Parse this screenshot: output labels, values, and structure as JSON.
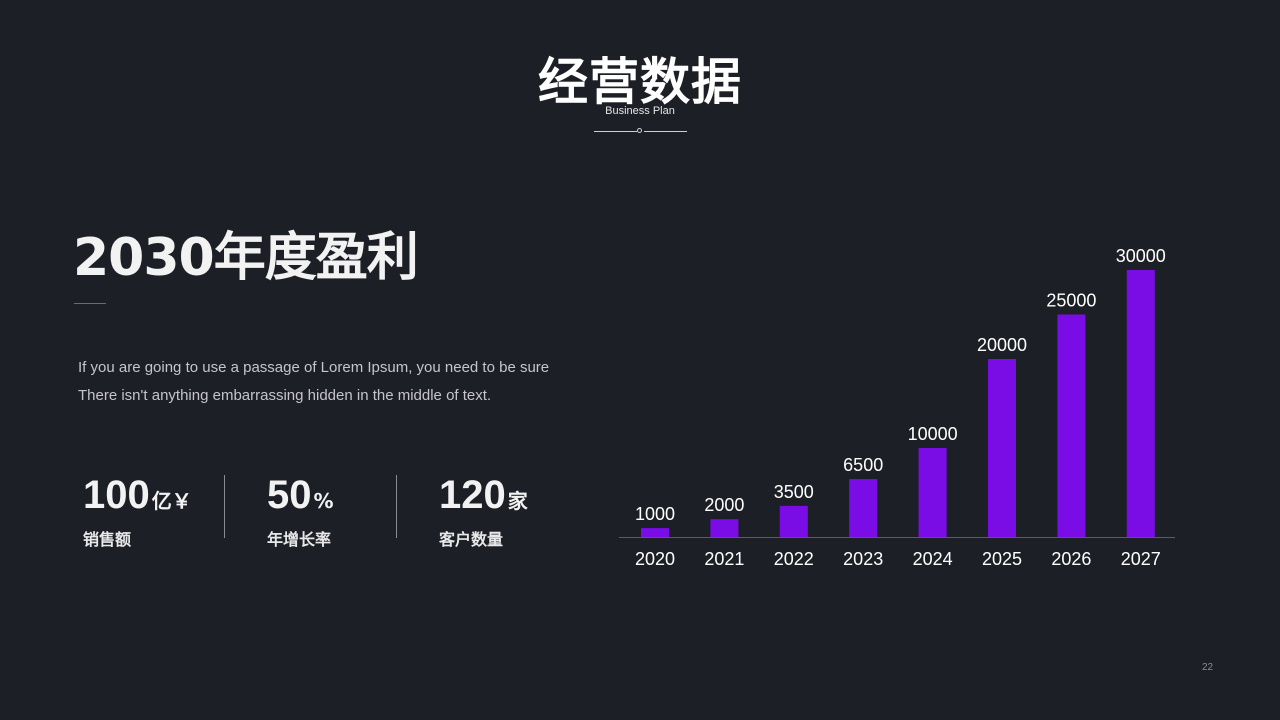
{
  "header": {
    "title": "经营数据",
    "subtitle": "Business Plan"
  },
  "headline": "2030年度盈利",
  "description": {
    "line1": "If  you  are going to use a passage of Lorem Ipsum,  you  need to be sure",
    "line2": "There isn't anything  embarrassing hidden in the middle of text."
  },
  "stats": [
    {
      "value": "100",
      "unit": "亿￥",
      "label": "销售额"
    },
    {
      "value": "50",
      "unit": "%",
      "label": "年增长率"
    },
    {
      "value": "120",
      "unit": "家",
      "label": "客户数量"
    }
  ],
  "page_number": "22",
  "colors": {
    "background": "#1d1f26",
    "bar": "#7a0de6",
    "axis": "#5a5c63"
  },
  "chart_data": {
    "type": "bar",
    "categories": [
      "2020",
      "2021",
      "2022",
      "2023",
      "2024",
      "2025",
      "2026",
      "2027"
    ],
    "values": [
      1000,
      2000,
      3500,
      6500,
      10000,
      20000,
      25000,
      30000
    ],
    "title": "",
    "xlabel": "",
    "ylabel": "",
    "ylim": [
      0,
      30000
    ],
    "grid": false,
    "legend": "none",
    "data_labels": true
  }
}
